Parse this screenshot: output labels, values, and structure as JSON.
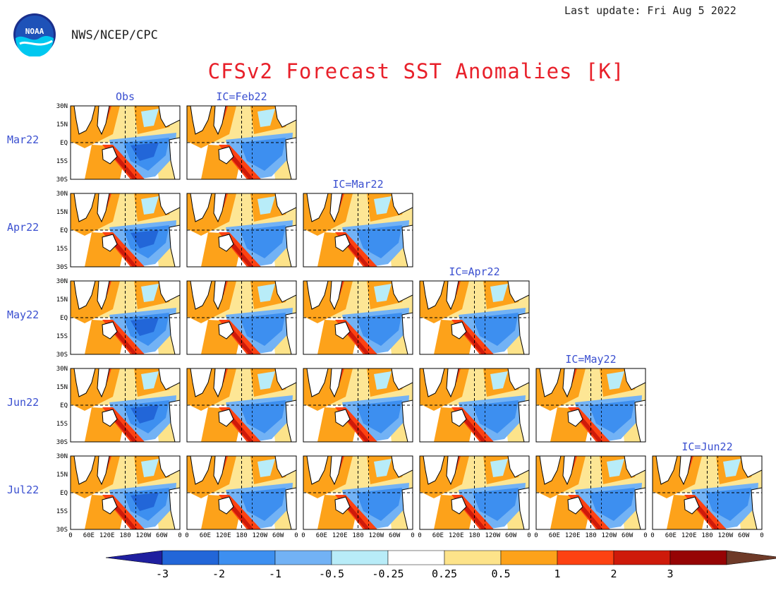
{
  "header": {
    "agency": "NWS/NCEP/CPC",
    "last_update": "Last update: Fri Aug 5 2022",
    "title": "CFSv2 Forecast SST Anomalies [K]",
    "logo_text": "NOAA"
  },
  "chart_data": {
    "type": "heatmap",
    "title": "CFSv2 Forecast SST Anomalies [K]",
    "columns": [
      "Obs",
      "IC=Feb22",
      "IC=Mar22",
      "IC=Apr22",
      "IC=May22",
      "IC=Jun22"
    ],
    "rows": [
      "Mar22",
      "Apr22",
      "May22",
      "Jun22",
      "Jul22"
    ],
    "lat_ticks": [
      "30N",
      "15N",
      "EQ",
      "15S",
      "30S"
    ],
    "lon_ticks": [
      "0",
      "60E",
      "120E",
      "180",
      "120W",
      "60W",
      "0"
    ],
    "colorbar": {
      "ticks": [
        "-3",
        "-2",
        "-1",
        "-0.5",
        "-0.25",
        "0.25",
        "0.5",
        "1",
        "2",
        "3"
      ],
      "colors": [
        "#1f1f9f",
        "#2266d8",
        "#3d8ff0",
        "#72b2f5",
        "#b8ecf8",
        "#ffffff",
        "#fde38a",
        "#fda21a",
        "#fd4212",
        "#ce1a0a",
        "#960404",
        "#6e3a28"
      ]
    },
    "panels": [
      {
        "row": "Mar22",
        "col": "Obs"
      },
      {
        "row": "Mar22",
        "col": "IC=Feb22"
      },
      {
        "row": "Apr22",
        "col": "Obs"
      },
      {
        "row": "Apr22",
        "col": "IC=Feb22"
      },
      {
        "row": "Apr22",
        "col": "IC=Mar22"
      },
      {
        "row": "May22",
        "col": "Obs"
      },
      {
        "row": "May22",
        "col": "IC=Feb22"
      },
      {
        "row": "May22",
        "col": "IC=Mar22"
      },
      {
        "row": "May22",
        "col": "IC=Apr22"
      },
      {
        "row": "Jun22",
        "col": "Obs"
      },
      {
        "row": "Jun22",
        "col": "IC=Feb22"
      },
      {
        "row": "Jun22",
        "col": "IC=Mar22"
      },
      {
        "row": "Jun22",
        "col": "IC=Apr22"
      },
      {
        "row": "Jun22",
        "col": "IC=May22"
      },
      {
        "row": "Jul22",
        "col": "Obs"
      },
      {
        "row": "Jul22",
        "col": "IC=Feb22"
      },
      {
        "row": "Jul22",
        "col": "IC=Mar22"
      },
      {
        "row": "Jul22",
        "col": "IC=Apr22"
      },
      {
        "row": "Jul22",
        "col": "IC=May22"
      },
      {
        "row": "Jul22",
        "col": "IC=Jun22"
      }
    ]
  }
}
